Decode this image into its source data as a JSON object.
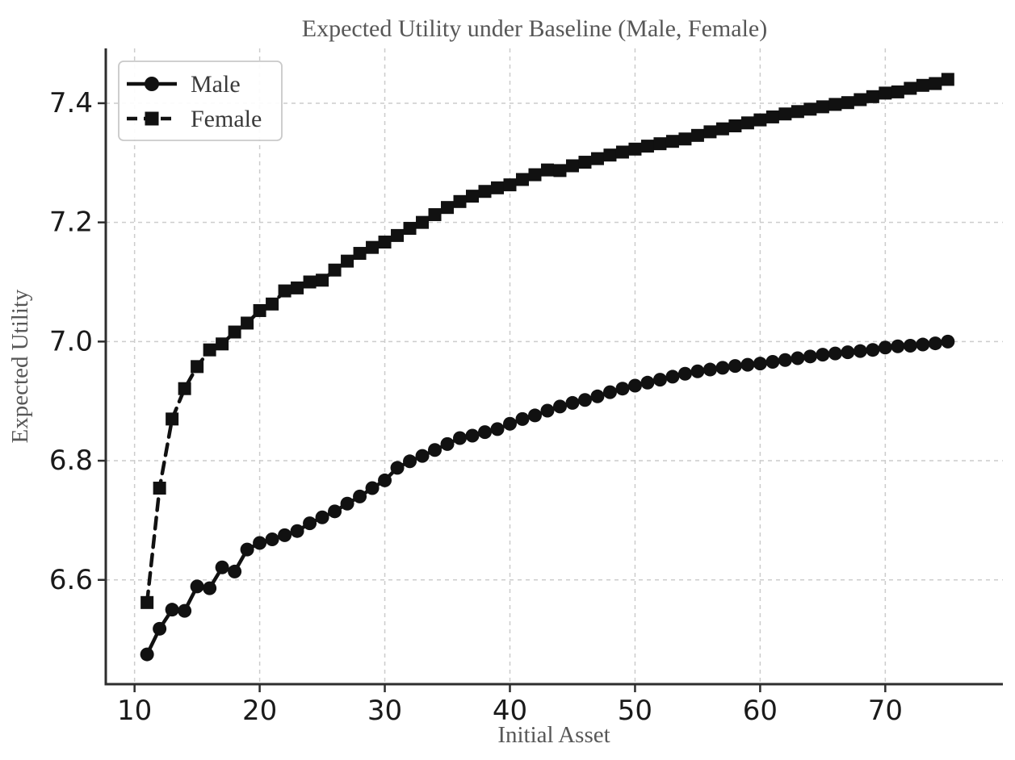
{
  "figure": {
    "title": "Expected Utility under Baseline (Male, Female)",
    "xlabel": "Initial Asset",
    "ylabel": "Expected Utility"
  },
  "colors": {
    "series": "#111111",
    "grid": "#cccccc",
    "spine": "#2e2e2e",
    "tick_label": "#1a1a1a",
    "title": "#575757",
    "legend_text": "#3a3a3a",
    "legend_border": "#c9c9c9",
    "background": "#ffffff"
  },
  "chart_data": {
    "type": "line",
    "title": "Expected Utility under Baseline (Male, Female)",
    "xlabel": "Initial Asset",
    "ylabel": "Expected Utility",
    "xlim": [
      7.7,
      79.4
    ],
    "ylim": [
      6.425,
      7.492
    ],
    "xticks": [
      10,
      20,
      30,
      40,
      50,
      60,
      70
    ],
    "yticks": [
      6.6,
      6.8,
      7.0,
      7.2,
      7.4
    ],
    "grid": true,
    "grid_style": "dashed",
    "legend_position": "upper-left",
    "x": [
      11,
      12,
      13,
      14,
      15,
      16,
      17,
      18,
      19,
      20,
      21,
      22,
      23,
      24,
      25,
      26,
      27,
      28,
      29,
      30,
      31,
      32,
      33,
      34,
      35,
      36,
      37,
      38,
      39,
      40,
      41,
      42,
      43,
      44,
      45,
      46,
      47,
      48,
      49,
      50,
      51,
      52,
      53,
      54,
      55,
      56,
      57,
      58,
      59,
      60,
      61,
      62,
      63,
      64,
      65,
      66,
      67,
      68,
      69,
      70,
      71,
      72,
      73,
      74,
      75
    ],
    "series": [
      {
        "name": "Male",
        "marker": "circle",
        "line_style": "solid",
        "color": "#111111",
        "values": [
          6.475,
          6.518,
          6.55,
          6.548,
          6.589,
          6.586,
          6.621,
          6.614,
          6.651,
          6.662,
          6.668,
          6.675,
          6.682,
          6.695,
          6.705,
          6.715,
          6.728,
          6.74,
          6.754,
          6.767,
          6.788,
          6.799,
          6.808,
          6.818,
          6.828,
          6.838,
          6.842,
          6.848,
          6.853,
          6.862,
          6.87,
          6.876,
          6.884,
          6.891,
          6.897,
          6.902,
          6.908,
          6.915,
          6.921,
          6.926,
          6.931,
          6.936,
          6.941,
          6.946,
          6.95,
          6.953,
          6.956,
          6.959,
          6.961,
          6.963,
          6.966,
          6.969,
          6.972,
          6.975,
          6.978,
          6.98,
          6.982,
          6.984,
          6.986,
          6.99,
          6.992,
          6.993,
          6.995,
          6.997,
          7.0
        ]
      },
      {
        "name": "Female",
        "marker": "square",
        "line_style": "dashed",
        "color": "#111111",
        "values": [
          6.562,
          6.754,
          6.87,
          6.921,
          6.958,
          6.986,
          6.996,
          7.016,
          7.031,
          7.052,
          7.063,
          7.085,
          7.09,
          7.1,
          7.103,
          7.12,
          7.135,
          7.148,
          7.158,
          7.167,
          7.178,
          7.19,
          7.2,
          7.213,
          7.225,
          7.235,
          7.244,
          7.252,
          7.258,
          7.263,
          7.272,
          7.28,
          7.288,
          7.287,
          7.295,
          7.301,
          7.307,
          7.313,
          7.318,
          7.323,
          7.328,
          7.332,
          7.336,
          7.34,
          7.346,
          7.352,
          7.357,
          7.362,
          7.367,
          7.372,
          7.377,
          7.382,
          7.386,
          7.39,
          7.394,
          7.398,
          7.401,
          7.406,
          7.411,
          7.417,
          7.419,
          7.425,
          7.43,
          7.433,
          7.44
        ]
      }
    ]
  }
}
